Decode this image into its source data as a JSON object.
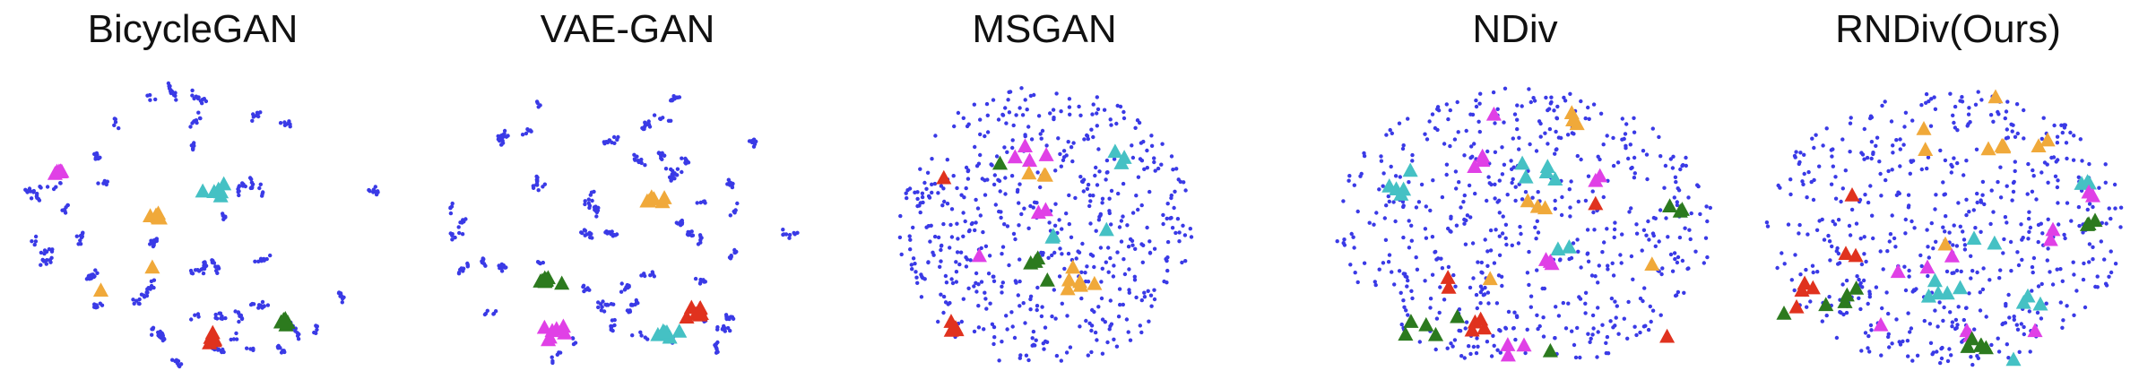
{
  "colors": {
    "points": "#3a3ae6",
    "magenta": "#e040e6",
    "orange": "#f0a93a",
    "teal": "#45c1c4",
    "green": "#2c7a1e",
    "red": "#e0321e"
  },
  "chart_data": [
    {
      "type": "scatter",
      "title": "BicycleGAN",
      "layout": "clustered",
      "seed": 11,
      "n_points": 420,
      "markers": [
        {
          "color": "magenta",
          "x": 0.14,
          "y": 0.33,
          "count": 7,
          "spread": 0.012
        },
        {
          "color": "teal",
          "x": 0.57,
          "y": 0.39,
          "count": 7,
          "spread": 0.015
        },
        {
          "color": "orange",
          "x": 0.4,
          "y": 0.48,
          "count": 6,
          "spread": 0.012
        },
        {
          "color": "orange",
          "x": 0.25,
          "y": 0.74,
          "count": 1,
          "spread": 0.0
        },
        {
          "color": "orange",
          "x": 0.39,
          "y": 0.66,
          "count": 1,
          "spread": 0.0
        },
        {
          "color": "red",
          "x": 0.56,
          "y": 0.91,
          "count": 7,
          "spread": 0.015
        },
        {
          "color": "green",
          "x": 0.75,
          "y": 0.85,
          "count": 6,
          "spread": 0.012
        }
      ]
    },
    {
      "type": "scatter",
      "title": "VAE-GAN",
      "layout": "clustered",
      "seed": 23,
      "n_points": 480,
      "markers": [
        {
          "color": "orange",
          "x": 0.56,
          "y": 0.43,
          "count": 6,
          "spread": 0.025
        },
        {
          "color": "green",
          "x": 0.27,
          "y": 0.71,
          "count": 8,
          "spread": 0.018
        },
        {
          "color": "magenta",
          "x": 0.29,
          "y": 0.88,
          "count": 7,
          "spread": 0.018
        },
        {
          "color": "red",
          "x": 0.7,
          "y": 0.82,
          "count": 8,
          "spread": 0.018
        },
        {
          "color": "teal",
          "x": 0.61,
          "y": 0.89,
          "count": 7,
          "spread": 0.015
        }
      ]
    },
    {
      "type": "scatter",
      "title": "MSGAN",
      "layout": "uniform",
      "seed": 37,
      "n_points": 560,
      "markers": [
        {
          "color": "magenta",
          "x": 0.45,
          "y": 0.29,
          "count": 4,
          "spread": 0.03
        },
        {
          "color": "orange",
          "x": 0.5,
          "y": 0.34,
          "count": 3,
          "spread": 0.03
        },
        {
          "color": "teal",
          "x": 0.77,
          "y": 0.28,
          "count": 3,
          "spread": 0.015
        },
        {
          "color": "teal",
          "x": 0.71,
          "y": 0.53,
          "count": 1,
          "spread": 0.0
        },
        {
          "color": "red",
          "x": 0.16,
          "y": 0.35,
          "count": 1,
          "spread": 0.0
        },
        {
          "color": "green",
          "x": 0.35,
          "y": 0.3,
          "count": 1,
          "spread": 0.0
        },
        {
          "color": "magenta",
          "x": 0.48,
          "y": 0.47,
          "count": 2,
          "spread": 0.03
        },
        {
          "color": "teal",
          "x": 0.53,
          "y": 0.55,
          "count": 2,
          "spread": 0.02
        },
        {
          "color": "green",
          "x": 0.47,
          "y": 0.64,
          "count": 4,
          "spread": 0.035
        },
        {
          "color": "orange",
          "x": 0.62,
          "y": 0.71,
          "count": 6,
          "spread": 0.04
        },
        {
          "color": "magenta",
          "x": 0.28,
          "y": 0.62,
          "count": 1,
          "spread": 0.0
        },
        {
          "color": "red",
          "x": 0.2,
          "y": 0.87,
          "count": 4,
          "spread": 0.02
        }
      ]
    },
    {
      "type": "scatter",
      "title": "NDiv",
      "layout": "uniform",
      "seed": 51,
      "n_points": 580,
      "markers": [
        {
          "color": "magenta",
          "x": 0.42,
          "y": 0.13,
          "count": 1,
          "spread": 0.0
        },
        {
          "color": "orange",
          "x": 0.63,
          "y": 0.15,
          "count": 3,
          "spread": 0.03
        },
        {
          "color": "magenta",
          "x": 0.39,
          "y": 0.29,
          "count": 3,
          "spread": 0.025
        },
        {
          "color": "teal",
          "x": 0.18,
          "y": 0.39,
          "count": 5,
          "spread": 0.035
        },
        {
          "color": "teal",
          "x": 0.56,
          "y": 0.33,
          "count": 5,
          "spread": 0.035
        },
        {
          "color": "orange",
          "x": 0.51,
          "y": 0.43,
          "count": 3,
          "spread": 0.03
        },
        {
          "color": "magenta",
          "x": 0.69,
          "y": 0.36,
          "count": 2,
          "spread": 0.02
        },
        {
          "color": "red",
          "x": 0.69,
          "y": 0.44,
          "count": 1,
          "spread": 0.0
        },
        {
          "color": "green",
          "x": 0.92,
          "y": 0.46,
          "count": 3,
          "spread": 0.02
        },
        {
          "color": "teal",
          "x": 0.62,
          "y": 0.59,
          "count": 2,
          "spread": 0.03
        },
        {
          "color": "magenta",
          "x": 0.57,
          "y": 0.64,
          "count": 3,
          "spread": 0.035
        },
        {
          "color": "orange",
          "x": 0.41,
          "y": 0.7,
          "count": 1,
          "spread": 0.0
        },
        {
          "color": "orange",
          "x": 0.84,
          "y": 0.65,
          "count": 1,
          "spread": 0.0
        },
        {
          "color": "red",
          "x": 0.3,
          "y": 0.73,
          "count": 2,
          "spread": 0.03
        },
        {
          "color": "green",
          "x": 0.24,
          "y": 0.86,
          "count": 5,
          "spread": 0.04
        },
        {
          "color": "red",
          "x": 0.37,
          "y": 0.85,
          "count": 4,
          "spread": 0.03
        },
        {
          "color": "magenta",
          "x": 0.5,
          "y": 0.93,
          "count": 3,
          "spread": 0.03
        },
        {
          "color": "green",
          "x": 0.57,
          "y": 0.95,
          "count": 1,
          "spread": 0.0
        },
        {
          "color": "red",
          "x": 0.88,
          "y": 0.9,
          "count": 1,
          "spread": 0.0
        }
      ]
    },
    {
      "type": "scatter",
      "title": "RNDiv(Ours)",
      "layout": "uniform",
      "seed": 77,
      "n_points": 560,
      "markers": [
        {
          "color": "orange",
          "x": 0.64,
          "y": 0.07,
          "count": 1,
          "spread": 0.0
        },
        {
          "color": "orange",
          "x": 0.44,
          "y": 0.18,
          "count": 2,
          "spread": 0.04
        },
        {
          "color": "orange",
          "x": 0.62,
          "y": 0.25,
          "count": 4,
          "spread": 0.04
        },
        {
          "color": "orange",
          "x": 0.76,
          "y": 0.24,
          "count": 2,
          "spread": 0.03
        },
        {
          "color": "teal",
          "x": 0.88,
          "y": 0.37,
          "count": 3,
          "spread": 0.025
        },
        {
          "color": "magenta",
          "x": 0.9,
          "y": 0.4,
          "count": 2,
          "spread": 0.02
        },
        {
          "color": "red",
          "x": 0.24,
          "y": 0.41,
          "count": 1,
          "spread": 0.0
        },
        {
          "color": "green",
          "x": 0.9,
          "y": 0.51,
          "count": 3,
          "spread": 0.03
        },
        {
          "color": "magenta",
          "x": 0.8,
          "y": 0.53,
          "count": 2,
          "spread": 0.03
        },
        {
          "color": "teal",
          "x": 0.58,
          "y": 0.56,
          "count": 2,
          "spread": 0.03
        },
        {
          "color": "orange",
          "x": 0.5,
          "y": 0.58,
          "count": 1,
          "spread": 0.0
        },
        {
          "color": "magenta",
          "x": 0.45,
          "y": 0.66,
          "count": 3,
          "spread": 0.035
        },
        {
          "color": "red",
          "x": 0.25,
          "y": 0.62,
          "count": 2,
          "spread": 0.03
        },
        {
          "color": "red",
          "x": 0.1,
          "y": 0.74,
          "count": 4,
          "spread": 0.03
        },
        {
          "color": "green",
          "x": 0.22,
          "y": 0.78,
          "count": 4,
          "spread": 0.04
        },
        {
          "color": "teal",
          "x": 0.48,
          "y": 0.75,
          "count": 5,
          "spread": 0.04
        },
        {
          "color": "teal",
          "x": 0.73,
          "y": 0.76,
          "count": 3,
          "spread": 0.03
        },
        {
          "color": "magenta",
          "x": 0.56,
          "y": 0.88,
          "count": 2,
          "spread": 0.03
        },
        {
          "color": "green",
          "x": 0.6,
          "y": 0.93,
          "count": 5,
          "spread": 0.03
        },
        {
          "color": "teal",
          "x": 0.69,
          "y": 0.98,
          "count": 1,
          "spread": 0.0
        },
        {
          "color": "magenta",
          "x": 0.32,
          "y": 0.86,
          "count": 1,
          "spread": 0.0
        },
        {
          "color": "magenta",
          "x": 0.75,
          "y": 0.88,
          "count": 1,
          "spread": 0.0
        },
        {
          "color": "green",
          "x": 0.05,
          "y": 0.82,
          "count": 1,
          "spread": 0.0
        }
      ]
    }
  ]
}
